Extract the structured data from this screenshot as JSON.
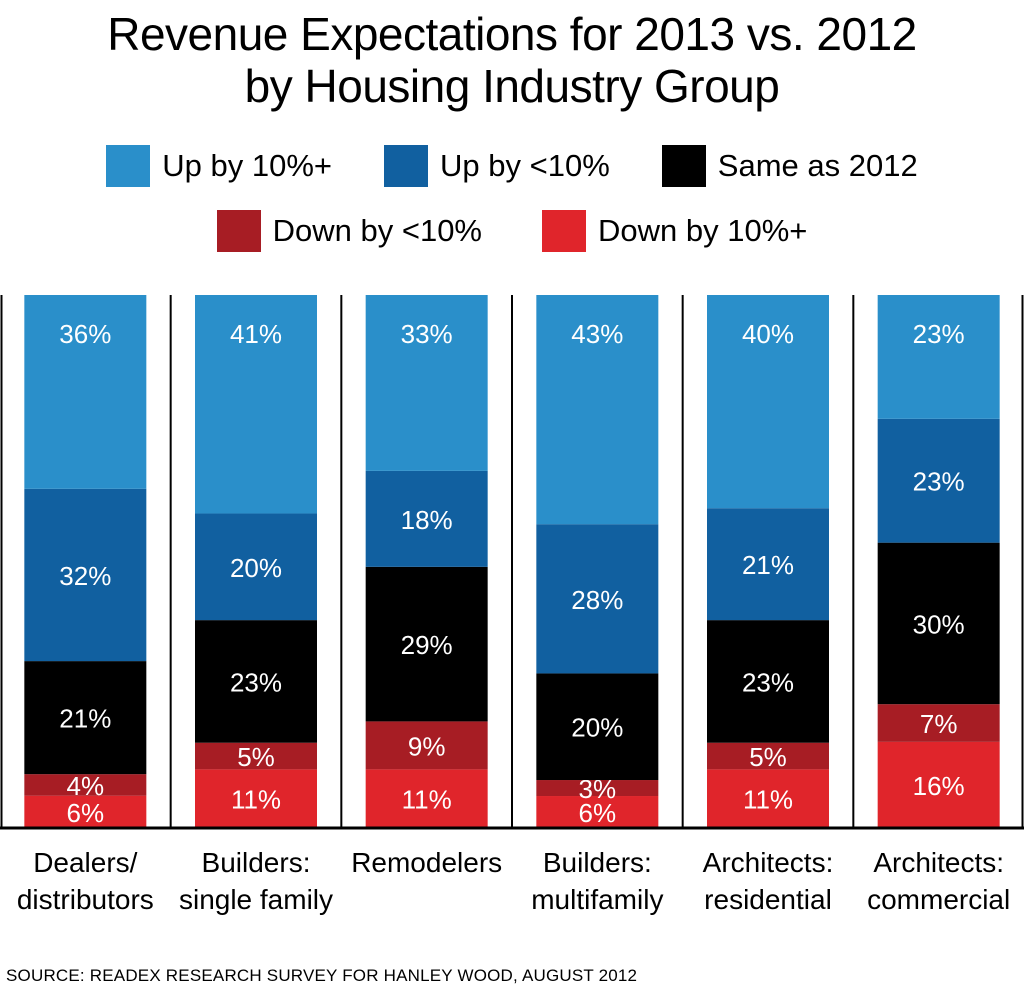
{
  "title_lines": [
    "Revenue Expectations for 2013 vs. 2012",
    "by Housing Industry Group"
  ],
  "source": "SOURCE: READEX RESEARCH SURVEY FOR HANLEY WOOD, AUGUST 2012",
  "chart_data": {
    "type": "bar",
    "stacked": true,
    "legend_placement": "top",
    "grid": false,
    "ylim": [
      0,
      100
    ],
    "categories": [
      [
        "Dealers/",
        "distributors"
      ],
      [
        "Builders:",
        "single family"
      ],
      [
        "Remodelers"
      ],
      [
        "Builders:",
        "multifamily"
      ],
      [
        "Architects:",
        "residential"
      ],
      [
        "Architects:",
        "commercial"
      ]
    ],
    "series": [
      {
        "name": "Down by 10%+",
        "color": "#e0252b",
        "values": [
          6,
          11,
          11,
          6,
          11,
          16
        ]
      },
      {
        "name": "Down by <10%",
        "color": "#a71d24",
        "values": [
          4,
          5,
          9,
          3,
          5,
          7
        ]
      },
      {
        "name": "Same as 2012",
        "color": "#000000",
        "values": [
          21,
          23,
          29,
          20,
          23,
          30
        ]
      },
      {
        "name": "Up by <10%",
        "color": "#1160a0",
        "values": [
          32,
          20,
          18,
          28,
          21,
          23
        ]
      },
      {
        "name": "Up by 10%+",
        "color": "#2a8fca",
        "values": [
          36,
          41,
          33,
          43,
          40,
          23
        ]
      }
    ],
    "legend_rows": [
      [
        "Up by 10%+",
        "Up by <10%",
        "Same as 2012"
      ],
      [
        "Down by <10%",
        "Down by 10%+"
      ]
    ]
  }
}
